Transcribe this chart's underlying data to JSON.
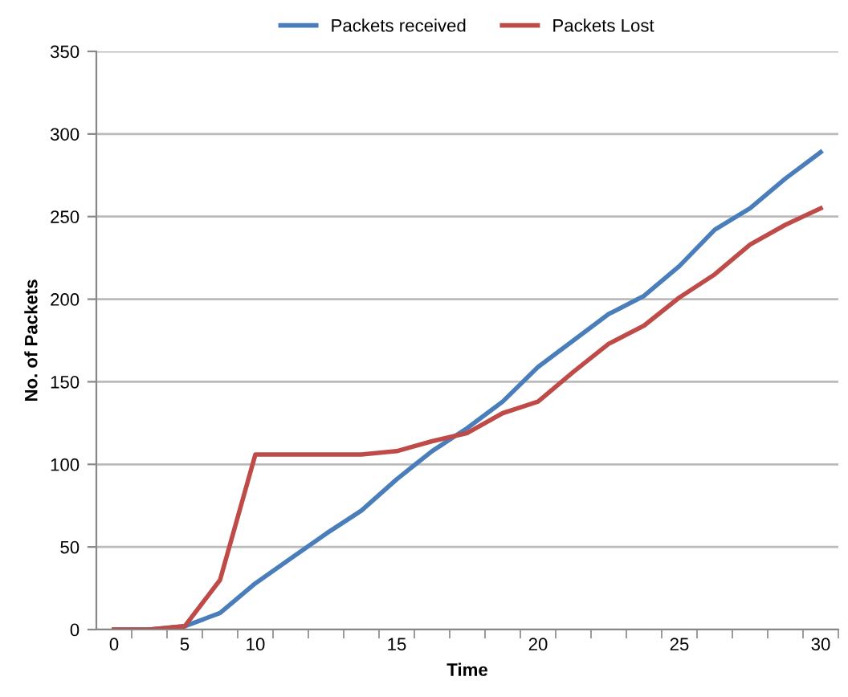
{
  "chart_data": {
    "type": "line",
    "xlabel": "Time",
    "ylabel": "No. of Packets",
    "categories": [
      "0",
      null,
      "5",
      null,
      "10",
      null,
      null,
      null,
      "15",
      null,
      null,
      null,
      "20",
      null,
      null,
      null,
      "25",
      null,
      null,
      null,
      "30"
    ],
    "series": [
      {
        "name": "Packets received",
        "color": "#4a7ebb",
        "values": [
          0,
          0,
          2,
          10,
          28,
          43,
          58,
          72,
          91,
          108,
          122,
          138,
          159,
          175,
          191,
          202,
          220,
          242,
          255,
          273,
          289
        ]
      },
      {
        "name": "Packets Lost",
        "color": "#be4b48",
        "values": [
          0,
          0,
          2,
          30,
          106,
          106,
          106,
          106,
          108,
          114,
          119,
          131,
          138,
          156,
          173,
          184,
          201,
          215,
          233,
          245,
          255
        ]
      }
    ],
    "ylim": [
      0,
      350
    ],
    "yticks": [
      0,
      50,
      100,
      150,
      200,
      250,
      300,
      350
    ],
    "grid": "y",
    "legend": "top",
    "marker": "none",
    "line_style": "solid"
  }
}
